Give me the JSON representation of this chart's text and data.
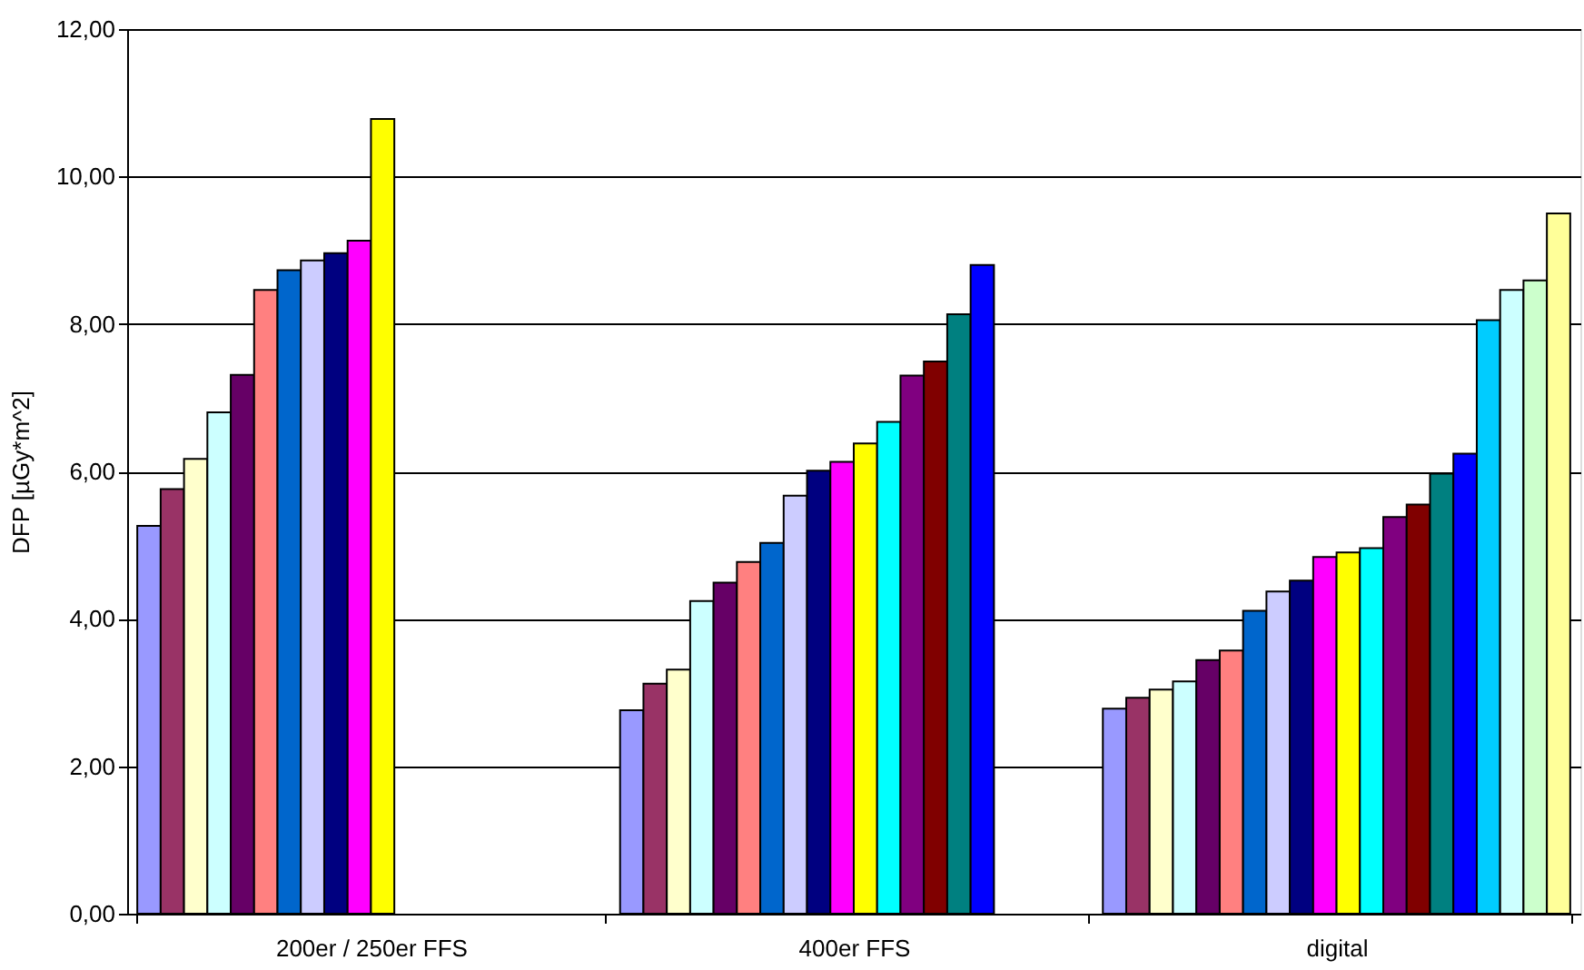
{
  "chart_data": {
    "type": "bar",
    "ylabel": "DFP [µGy*m^2]",
    "categories": [
      "200er / 250er FFS",
      "400er FFS",
      "digital"
    ],
    "ylim": [
      0,
      12
    ],
    "yticks": [
      {
        "value": 0,
        "label": "0,00"
      },
      {
        "value": 2,
        "label": "2,00"
      },
      {
        "value": 4,
        "label": "4,00"
      },
      {
        "value": 6,
        "label": "6,00"
      },
      {
        "value": 8,
        "label": "8,00"
      },
      {
        "value": 10,
        "label": "10,00"
      },
      {
        "value": 12,
        "label": "12,00"
      }
    ],
    "grid": "y",
    "legend": false,
    "series": [
      {
        "color": "#9999ff",
        "values": [
          5.26,
          2.76,
          2.78
        ]
      },
      {
        "color": "#993366",
        "values": [
          5.76,
          3.12,
          2.93
        ]
      },
      {
        "color": "#ffffcc",
        "values": [
          6.17,
          3.31,
          3.04
        ]
      },
      {
        "color": "#ccffff",
        "values": [
          6.8,
          4.24,
          3.15
        ]
      },
      {
        "color": "#660066",
        "values": [
          7.31,
          4.49,
          3.44
        ]
      },
      {
        "color": "#ff8080",
        "values": [
          8.46,
          4.77,
          3.57
        ]
      },
      {
        "color": "#0066cc",
        "values": [
          8.73,
          5.03,
          4.11
        ]
      },
      {
        "color": "#ccccff",
        "values": [
          8.86,
          5.67,
          4.37
        ]
      },
      {
        "color": "#000080",
        "values": [
          8.96,
          6.01,
          4.52
        ]
      },
      {
        "color": "#ff00ff",
        "values": [
          9.13,
          6.13,
          4.84
        ]
      },
      {
        "color": "#ffff00",
        "values": [
          10.78,
          6.38,
          4.9
        ]
      },
      {
        "color": "#00ffff",
        "values": [
          null,
          6.67,
          4.96
        ]
      },
      {
        "color": "#800080",
        "values": [
          null,
          7.3,
          5.38
        ]
      },
      {
        "color": "#800000",
        "values": [
          null,
          7.49,
          5.55
        ]
      },
      {
        "color": "#008080",
        "values": [
          null,
          8.13,
          5.97
        ]
      },
      {
        "color": "#0000ff",
        "values": [
          null,
          8.8,
          6.24
        ]
      },
      {
        "color": "#00ccff",
        "values": [
          null,
          null,
          8.05
        ]
      },
      {
        "color": "#ccffff",
        "values": [
          null,
          null,
          8.46
        ]
      },
      {
        "color": "#ccffcc",
        "values": [
          null,
          null,
          8.59
        ]
      },
      {
        "color": "#ffff99",
        "values": [
          null,
          null,
          9.5
        ]
      }
    ]
  }
}
